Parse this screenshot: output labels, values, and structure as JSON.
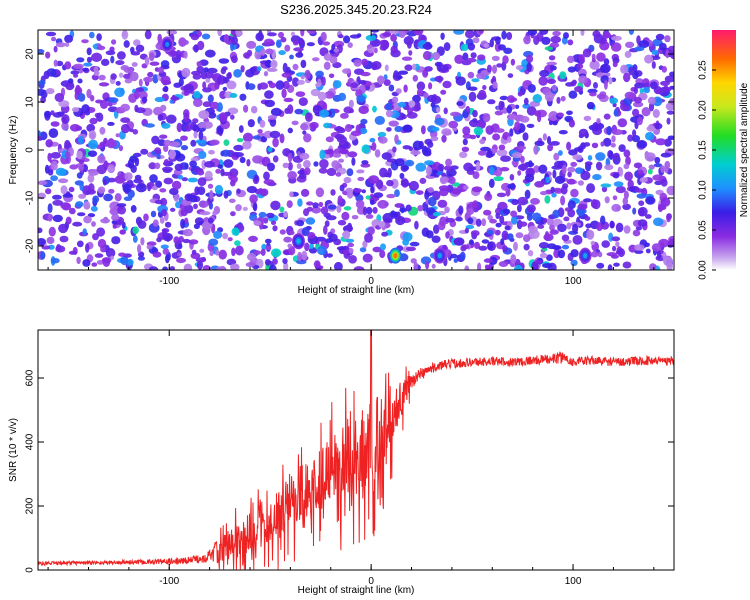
{
  "title": "S236.2025.345.20.23.R24",
  "colors": {
    "snr_line": "#ee2222",
    "axis": "#000000",
    "background": "#ffffff"
  },
  "chart_data": [
    {
      "type": "heatmap",
      "name": "spectrogram",
      "xlabel": "Height of straight line (km)",
      "ylabel": "Frequency (Hz)",
      "xlim": [
        -165,
        150
      ],
      "ylim": [
        -25,
        25
      ],
      "xticks": [
        -100,
        0,
        100
      ],
      "xtick_labels": [
        "-100",
        "0",
        "100"
      ],
      "yticks": [
        -20,
        -10,
        0,
        10,
        20
      ],
      "ytick_labels": [
        "-20",
        "-10",
        "0",
        "10",
        "20"
      ],
      "colorbar": {
        "label": "Normalized spectral amplitude",
        "range": [
          0.0,
          0.3
        ],
        "ticks": [
          0.0,
          0.05,
          0.1,
          0.15,
          0.2,
          0.25
        ],
        "tick_labels": [
          "0.00",
          "0.05",
          "0.10",
          "0.15",
          "0.20",
          "0.25"
        ]
      },
      "hotspots": [
        {
          "x": 12,
          "y": -22,
          "value": 0.26
        },
        {
          "x": -36,
          "y": -19,
          "value": 0.12
        },
        {
          "x": 34,
          "y": -22,
          "value": 0.11
        },
        {
          "x": 106,
          "y": -22,
          "value": 0.11
        },
        {
          "x": -101,
          "y": 22,
          "value": 0.1
        }
      ]
    },
    {
      "type": "line",
      "name": "snr",
      "xlabel": "Height of straight line (km)",
      "ylabel": "SNR (10 * v/v)",
      "xlim": [
        -165,
        150
      ],
      "ylim": [
        0,
        750
      ],
      "xticks": [
        -100,
        0,
        100
      ],
      "xtick_labels": [
        "-100",
        "0",
        "100"
      ],
      "yticks": [
        0,
        200,
        400,
        600
      ],
      "ytick_labels": [
        "0",
        "200",
        "400",
        "600"
      ],
      "x": [
        -165,
        -150,
        -130,
        -110,
        -95,
        -85,
        -80,
        -75,
        -70,
        -65,
        -60,
        -55,
        -50,
        -45,
        -40,
        -35,
        -30,
        -25,
        -20,
        -15,
        -10,
        -5,
        0,
        5,
        10,
        15,
        20,
        25,
        30,
        35,
        40,
        50,
        60,
        70,
        80,
        90,
        95,
        100,
        110,
        120,
        130,
        140,
        150
      ],
      "values": [
        20,
        22,
        23,
        25,
        27,
        35,
        45,
        60,
        80,
        100,
        120,
        140,
        160,
        180,
        210,
        240,
        270,
        290,
        310,
        350,
        370,
        380,
        410,
        440,
        480,
        540,
        590,
        615,
        630,
        640,
        645,
        650,
        652,
        650,
        655,
        660,
        665,
        650,
        655,
        650,
        652,
        655,
        655
      ],
      "noise_amplitude": [
        6,
        6,
        6,
        8,
        10,
        14,
        20,
        40,
        50,
        60,
        60,
        70,
        70,
        80,
        80,
        90,
        90,
        100,
        110,
        120,
        130,
        130,
        140,
        120,
        90,
        50,
        25,
        20,
        15,
        15,
        15,
        14,
        14,
        14,
        14,
        16,
        20,
        14,
        14,
        14,
        14,
        14,
        14
      ]
    }
  ]
}
